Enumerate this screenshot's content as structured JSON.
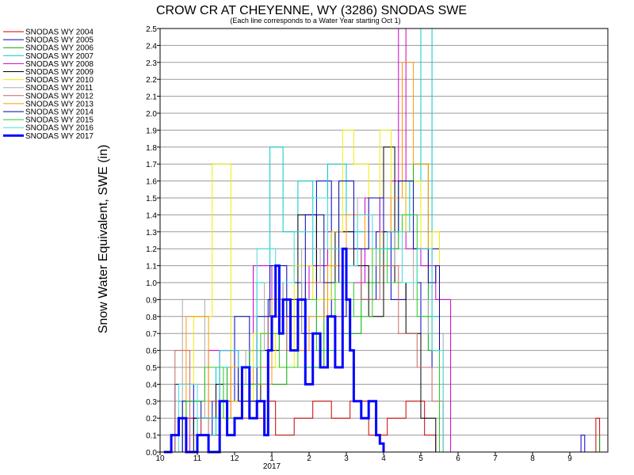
{
  "chart_data": {
    "type": "line",
    "title": "CROW CR AT CHEYENNE, WY (3286) SNODAS SWE",
    "subtitle": "(Each line corresponds to a Water Year starting Oct 1)",
    "ylabel": "Snow Water Equivalent, SWE (in)",
    "xlabel": "",
    "ylim": [
      0,
      2.5
    ],
    "yticks": [
      "0.0",
      "0.1",
      "0.2",
      "0.3",
      "0.4",
      "0.5",
      "0.6",
      "0.7",
      "0.8",
      "0.9",
      "1.0",
      "1.1",
      "1.2",
      "1.3",
      "1.4",
      "1.5",
      "1.6",
      "1.7",
      "1.8",
      "1.9",
      "2.0",
      "2.1",
      "2.2",
      "2.3",
      "2.4",
      "2.5"
    ],
    "xticks": [
      "10",
      "11",
      "12",
      "1",
      "2",
      "3",
      "4",
      "5",
      "6",
      "7",
      "8",
      "9"
    ],
    "xtick_year_label": "2017",
    "x_unit": "month of water year",
    "grid": true,
    "legend_position": "left",
    "series": [
      {
        "name": "SNODAS WY 2004",
        "color": "#cc0000",
        "x": [
          10.3,
          10.6,
          11.1,
          11.6,
          12.2,
          12.8,
          1.1,
          1.6,
          2.1,
          2.6,
          3.1,
          3.6,
          4.1,
          4.6,
          5.1,
          5.4,
          9.7,
          9.8
        ],
        "values": [
          0.0,
          0.2,
          0.1,
          0.3,
          0.2,
          0.3,
          0.1,
          0.2,
          0.3,
          0.2,
          0.3,
          0.1,
          0.2,
          0.3,
          0.1,
          0.0,
          0.2,
          0.0
        ]
      },
      {
        "name": "SNODAS WY 2005",
        "color": "#0000cc",
        "x": [
          10.1,
          10.4,
          10.9,
          11.4,
          12.0,
          12.4,
          12.9,
          1.3,
          1.8,
          2.2,
          2.6,
          3.0,
          3.4,
          3.8,
          4.2,
          4.6,
          5.0,
          5.3,
          5.5,
          9.3,
          9.4
        ],
        "values": [
          0.0,
          0.4,
          0.1,
          0.3,
          0.8,
          0.4,
          0.9,
          1.0,
          0.7,
          1.6,
          0.8,
          1.2,
          0.9,
          1.3,
          0.9,
          1.0,
          0.5,
          1.2,
          0.0,
          0.1,
          0.0
        ]
      },
      {
        "name": "SNODAS WY 2006",
        "color": "#00aa00",
        "x": [
          10.2,
          10.7,
          11.2,
          11.8,
          12.4,
          12.9,
          1.4,
          1.9,
          2.4,
          2.9,
          3.4,
          3.9,
          4.4,
          4.8,
          5.2,
          5.5,
          9.8
        ],
        "values": [
          0.0,
          0.3,
          0.5,
          0.2,
          0.6,
          0.4,
          0.9,
          0.5,
          1.0,
          0.7,
          1.0,
          1.2,
          1.6,
          1.7,
          0.6,
          0.0,
          0.1
        ]
      },
      {
        "name": "SNODAS WY 2007",
        "color": "#00cccc",
        "x": [
          10.1,
          10.5,
          11.0,
          11.5,
          12.1,
          12.6,
          12.95,
          1.3,
          1.7,
          2.1,
          2.5,
          3.0,
          3.5,
          3.9,
          4.3,
          4.7,
          5.0,
          5.3,
          5.5
        ],
        "values": [
          0.0,
          0.3,
          0.1,
          0.5,
          0.3,
          1.0,
          1.8,
          1.3,
          1.6,
          1.0,
          1.7,
          1.3,
          1.5,
          1.2,
          1.3,
          1.6,
          2.5,
          0.8,
          0.0
        ]
      },
      {
        "name": "SNODAS WY 2008",
        "color": "#cc00cc",
        "x": [
          10.2,
          10.8,
          11.3,
          11.9,
          12.5,
          13.0,
          1.5,
          2.0,
          2.5,
          3.0,
          3.5,
          3.9,
          4.2,
          4.4,
          4.6,
          5.0,
          5.4,
          5.8
        ],
        "values": [
          0.0,
          0.2,
          0.6,
          0.3,
          1.1,
          0.8,
          0.9,
          1.1,
          1.3,
          1.0,
          1.5,
          1.3,
          1.6,
          2.5,
          1.2,
          1.1,
          0.9,
          0.0
        ]
      },
      {
        "name": "SNODAS WY 2009",
        "color": "#000000",
        "x": [
          10.3,
          10.9,
          11.5,
          12.1,
          12.7,
          1.2,
          1.7,
          2.2,
          2.7,
          3.2,
          3.6,
          4.0,
          4.3,
          4.6,
          5.0,
          5.4
        ],
        "values": [
          0.0,
          0.2,
          0.4,
          0.3,
          0.6,
          0.9,
          1.4,
          1.0,
          1.3,
          1.1,
          0.8,
          1.8,
          1.0,
          0.7,
          0.2,
          0.0
        ]
      },
      {
        "name": "SNODAS WY 2010",
        "color": "#eeee00",
        "x": [
          10.1,
          10.5,
          10.9,
          11.4,
          11.9,
          12.5,
          1.1,
          1.6,
          2.1,
          2.6,
          2.9,
          3.2,
          3.6,
          3.9,
          4.2,
          4.6,
          5.0,
          5.3,
          5.5
        ],
        "values": [
          0.0,
          0.4,
          0.8,
          1.7,
          0.3,
          0.7,
          0.5,
          1.1,
          0.9,
          1.3,
          1.9,
          1.7,
          1.5,
          1.9,
          1.3,
          1.6,
          1.2,
          1.3,
          0.0
        ]
      },
      {
        "name": "SNODAS WY 2011",
        "color": "#aaaaaa",
        "x": [
          10.2,
          10.6,
          11.2,
          11.7,
          12.3,
          12.8,
          1.3,
          1.8,
          2.3,
          2.8,
          3.3,
          3.8,
          4.3,
          4.8,
          5.2,
          5.6
        ],
        "values": [
          0.0,
          0.9,
          0.2,
          0.4,
          0.6,
          1.0,
          0.7,
          1.2,
          1.0,
          1.5,
          1.2,
          1.1,
          1.3,
          0.9,
          0.7,
          0.0
        ]
      },
      {
        "name": "SNODAS WY 2012",
        "color": "#cc6666",
        "x": [
          10.1,
          10.4,
          10.8,
          11.3,
          11.9,
          12.4,
          12.9,
          1.4,
          1.9,
          2.4,
          2.9,
          3.4,
          3.9,
          4.4,
          4.9,
          5.3,
          5.6
        ],
        "values": [
          0.0,
          0.6,
          0.1,
          0.3,
          0.2,
          0.5,
          0.8,
          0.6,
          1.0,
          0.8,
          1.2,
          0.9,
          1.1,
          0.7,
          0.5,
          0.3,
          0.0
        ]
      },
      {
        "name": "SNODAS WY 2013",
        "color": "#ff9900",
        "x": [
          10.2,
          10.7,
          11.3,
          11.9,
          12.5,
          13.0,
          1.5,
          2.0,
          2.5,
          3.0,
          3.5,
          3.9,
          4.2,
          4.5,
          4.8,
          5.2,
          5.5
        ],
        "values": [
          0.0,
          0.8,
          0.2,
          0.5,
          0.4,
          0.9,
          0.6,
          0.8,
          1.1,
          1.4,
          1.2,
          1.3,
          1.5,
          2.3,
          1.7,
          1.0,
          0.0
        ]
      },
      {
        "name": "SNODAS WY 2014",
        "color": "#0000aa",
        "x": [
          10.1,
          10.6,
          11.1,
          11.6,
          12.1,
          12.6,
          12.95,
          1.4,
          1.9,
          2.4,
          2.8,
          3.2,
          3.6,
          4.0,
          4.4,
          4.8,
          5.2,
          5.4,
          5.5
        ],
        "values": [
          0.0,
          0.3,
          0.2,
          0.6,
          0.3,
          0.8,
          1.1,
          0.8,
          1.4,
          1.0,
          1.6,
          1.2,
          1.5,
          1.3,
          1.6,
          1.2,
          1.0,
          1.1,
          0.0
        ]
      },
      {
        "name": "SNODAS WY 2015",
        "color": "#22cc22",
        "x": [
          10.2,
          10.7,
          11.2,
          11.7,
          12.2,
          12.7,
          1.2,
          1.7,
          2.2,
          2.7,
          3.2,
          3.7,
          4.1,
          4.5,
          4.9,
          5.3,
          5.5
        ],
        "values": [
          0.0,
          0.3,
          0.5,
          0.2,
          0.4,
          0.7,
          0.5,
          0.9,
          0.6,
          1.0,
          0.8,
          1.2,
          1.0,
          1.4,
          0.8,
          0.6,
          0.0
        ]
      },
      {
        "name": "SNODAS WY 2016",
        "color": "#44dddd",
        "x": [
          10.1,
          10.5,
          11.0,
          11.6,
          12.1,
          12.6,
          1.1,
          1.6,
          2.1,
          2.5,
          2.9,
          3.3,
          3.7,
          4.1,
          4.5,
          4.9,
          5.3,
          5.6
        ],
        "values": [
          0.0,
          0.4,
          0.2,
          0.6,
          0.5,
          1.2,
          1.0,
          1.3,
          1.5,
          1.2,
          1.1,
          1.4,
          1.2,
          1.3,
          1.0,
          1.2,
          0.6,
          0.0
        ]
      },
      {
        "name": "SNODAS WY 2017",
        "color": "#0000ff",
        "bold": true,
        "x": [
          10.1,
          10.3,
          10.5,
          10.7,
          11.0,
          11.3,
          11.6,
          11.8,
          12.0,
          12.2,
          12.4,
          12.6,
          12.8,
          12.9,
          1.0,
          1.1,
          1.2,
          1.3,
          1.5,
          1.7,
          1.9,
          2.1,
          2.3,
          2.5,
          2.7,
          2.9,
          3.0,
          3.1,
          3.2,
          3.4,
          3.6,
          3.8,
          3.9,
          4.0
        ],
        "values": [
          0.0,
          0.1,
          0.2,
          0.0,
          0.1,
          0.0,
          0.3,
          0.1,
          0.2,
          0.5,
          0.2,
          0.3,
          0.1,
          0.6,
          0.8,
          1.1,
          0.7,
          0.9,
          0.6,
          0.9,
          0.4,
          0.7,
          0.5,
          0.8,
          0.5,
          1.2,
          0.9,
          0.6,
          0.3,
          0.2,
          0.3,
          0.1,
          0.05,
          0.0
        ]
      }
    ]
  }
}
